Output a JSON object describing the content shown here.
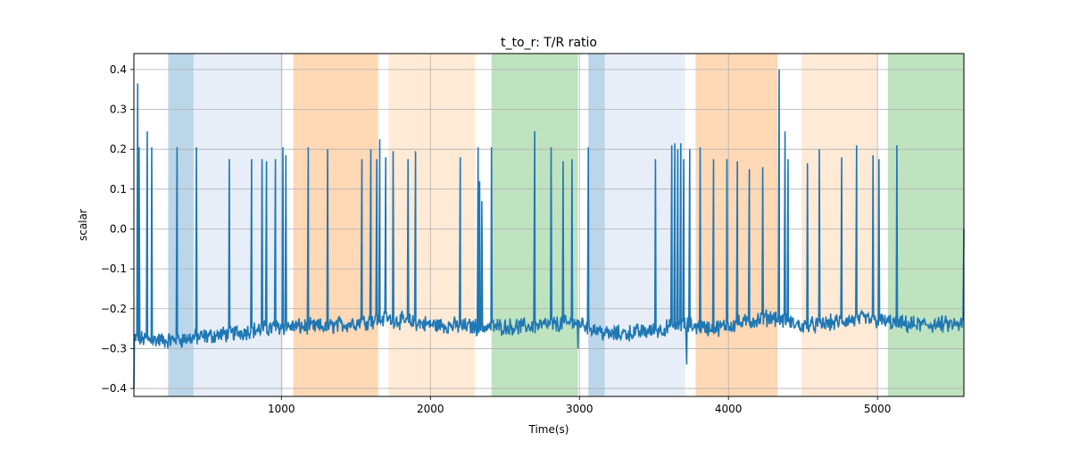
{
  "chart_data": {
    "type": "line",
    "title": "t_to_r: T/R ratio",
    "xlabel": "Time(s)",
    "ylabel": "scalar",
    "xlim": [
      10,
      5580
    ],
    "ylim": [
      -0.42,
      0.44
    ],
    "grid": true,
    "x_ticks": [
      1000,
      2000,
      3000,
      4000,
      5000
    ],
    "x_tick_labels": [
      "1000",
      "2000",
      "3000",
      "4000",
      "5000"
    ],
    "y_ticks": [
      -0.4,
      -0.3,
      -0.2,
      -0.1,
      0.0,
      0.1,
      0.2,
      0.3,
      0.4
    ],
    "y_tick_labels": [
      "−0.4",
      "−0.3",
      "−0.2",
      "−0.1",
      "0.0",
      "0.1",
      "0.2",
      "0.3",
      "0.4"
    ],
    "shaded_regions": [
      {
        "start": 240,
        "end": 410,
        "color": "#1f77b4",
        "opacity": 0.3
      },
      {
        "start": 410,
        "end": 1010,
        "color": "#aec7e8",
        "opacity": 0.3
      },
      {
        "start": 1080,
        "end": 1650,
        "color": "#ff7f0e",
        "opacity": 0.3
      },
      {
        "start": 1720,
        "end": 2300,
        "color": "#ffbb78",
        "opacity": 0.3
      },
      {
        "start": 2410,
        "end": 2990,
        "color": "#2ca02c",
        "opacity": 0.3
      },
      {
        "start": 3060,
        "end": 3170,
        "color": "#1f77b4",
        "opacity": 0.3
      },
      {
        "start": 3170,
        "end": 3710,
        "color": "#aec7e8",
        "opacity": 0.3
      },
      {
        "start": 3780,
        "end": 4330,
        "color": "#ff7f0e",
        "opacity": 0.3
      },
      {
        "start": 4490,
        "end": 5000,
        "color": "#ffbb78",
        "opacity": 0.3
      },
      {
        "start": 5070,
        "end": 5580,
        "color": "#2ca02c",
        "opacity": 0.3
      }
    ],
    "series": [
      {
        "name": "t_to_r",
        "color": "#1f77b4",
        "baseline": [
          [
            10,
            -0.275
          ],
          [
            240,
            -0.28
          ],
          [
            600,
            -0.265
          ],
          [
            1000,
            -0.245
          ],
          [
            1300,
            -0.245
          ],
          [
            1700,
            -0.225
          ],
          [
            2000,
            -0.24
          ],
          [
            2300,
            -0.245
          ],
          [
            2600,
            -0.245
          ],
          [
            3000,
            -0.235
          ],
          [
            3200,
            -0.265
          ],
          [
            3500,
            -0.255
          ],
          [
            3700,
            -0.24
          ],
          [
            3900,
            -0.25
          ],
          [
            4300,
            -0.22
          ],
          [
            4500,
            -0.245
          ],
          [
            4900,
            -0.225
          ],
          [
            5200,
            -0.24
          ],
          [
            5580,
            -0.24
          ]
        ],
        "spikes": [
          [
            36,
            0.365
          ],
          [
            45,
            0.205
          ],
          [
            100,
            0.245
          ],
          [
            130,
            0.205
          ],
          [
            300,
            0.205
          ],
          [
            430,
            0.205
          ],
          [
            650,
            0.175
          ],
          [
            800,
            0.175
          ],
          [
            870,
            0.175
          ],
          [
            900,
            0.17
          ],
          [
            960,
            0.175
          ],
          [
            1010,
            0.205
          ],
          [
            1030,
            0.185
          ],
          [
            1180,
            0.205
          ],
          [
            1310,
            0.2
          ],
          [
            1540,
            0.175
          ],
          [
            1600,
            0.2
          ],
          [
            1640,
            0.175
          ],
          [
            1660,
            0.225
          ],
          [
            1700,
            0.18
          ],
          [
            1750,
            0.195
          ],
          [
            1850,
            0.175
          ],
          [
            1900,
            0.195
          ],
          [
            2200,
            0.18
          ],
          [
            2320,
            0.205
          ],
          [
            2330,
            0.12
          ],
          [
            2345,
            0.07
          ],
          [
            2410,
            0.205
          ],
          [
            2700,
            0.245
          ],
          [
            2810,
            0.205
          ],
          [
            2890,
            0.17
          ],
          [
            2950,
            0.175
          ],
          [
            3060,
            0.205
          ],
          [
            3510,
            0.175
          ],
          [
            3620,
            0.21
          ],
          [
            3640,
            0.215
          ],
          [
            3660,
            0.2
          ],
          [
            3680,
            0.215
          ],
          [
            3700,
            0.175
          ],
          [
            3740,
            0.2
          ],
          [
            3810,
            0.205
          ],
          [
            3900,
            0.175
          ],
          [
            3990,
            0.175
          ],
          [
            4060,
            0.17
          ],
          [
            4140,
            0.15
          ],
          [
            4230,
            0.155
          ],
          [
            4340,
            0.4
          ],
          [
            4380,
            0.245
          ],
          [
            4400,
            0.175
          ],
          [
            4530,
            0.165
          ],
          [
            4610,
            0.2
          ],
          [
            4760,
            0.18
          ],
          [
            4860,
            0.21
          ],
          [
            4970,
            0.185
          ],
          [
            5010,
            0.175
          ],
          [
            5130,
            0.21
          ],
          [
            5580,
            0.0
          ]
        ],
        "dips": [
          [
            10,
            -0.4
          ],
          [
            3720,
            -0.34
          ],
          [
            2990,
            -0.3
          ]
        ]
      }
    ]
  }
}
